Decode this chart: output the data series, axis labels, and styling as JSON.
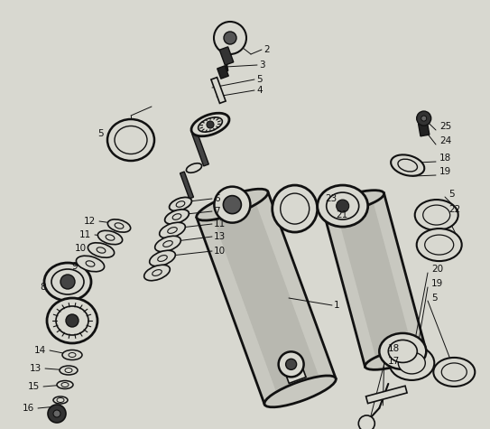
{
  "bg_color": "#d8d8d0",
  "line_color": "#111111",
  "figsize": [
    5.43,
    4.75
  ],
  "dpi": 100
}
